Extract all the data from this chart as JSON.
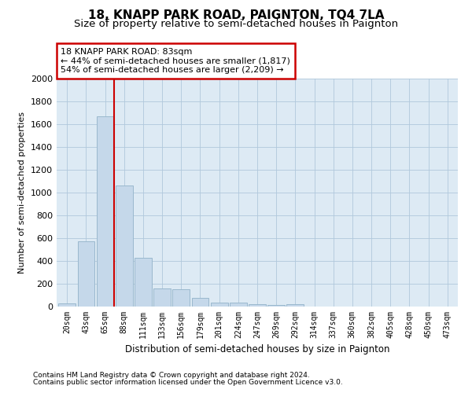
{
  "title": "18, KNAPP PARK ROAD, PAIGNTON, TQ4 7LA",
  "subtitle": "Size of property relative to semi-detached houses in Paignton",
  "xlabel": "Distribution of semi-detached houses by size in Paignton",
  "ylabel": "Number of semi-detached properties",
  "footnote1": "Contains HM Land Registry data © Crown copyright and database right 2024.",
  "footnote2": "Contains public sector information licensed under the Open Government Licence v3.0.",
  "categories": [
    "20sqm",
    "43sqm",
    "65sqm",
    "88sqm",
    "111sqm",
    "133sqm",
    "156sqm",
    "179sqm",
    "201sqm",
    "224sqm",
    "247sqm",
    "269sqm",
    "292sqm",
    "314sqm",
    "337sqm",
    "360sqm",
    "382sqm",
    "405sqm",
    "428sqm",
    "450sqm",
    "473sqm"
  ],
  "values": [
    30,
    570,
    1670,
    1060,
    430,
    158,
    152,
    75,
    35,
    35,
    20,
    15,
    20,
    0,
    0,
    0,
    0,
    0,
    0,
    0,
    0
  ],
  "bar_color": "#c5d8ea",
  "bar_edge_color": "#9ab8ce",
  "highlight_bar_index": 2,
  "highlight_line_color": "#cc0000",
  "annotation_box_text": "18 KNAPP PARK ROAD: 83sqm\n← 44% of semi-detached houses are smaller (1,817)\n54% of semi-detached houses are larger (2,209) →",
  "annotation_box_color": "#cc0000",
  "ylim": [
    0,
    2000
  ],
  "yticks": [
    0,
    200,
    400,
    600,
    800,
    1000,
    1200,
    1400,
    1600,
    1800,
    2000
  ],
  "grid_color": "#b0c8dc",
  "background_color": "#ddeaf4",
  "title_fontsize": 11,
  "subtitle_fontsize": 9.5
}
